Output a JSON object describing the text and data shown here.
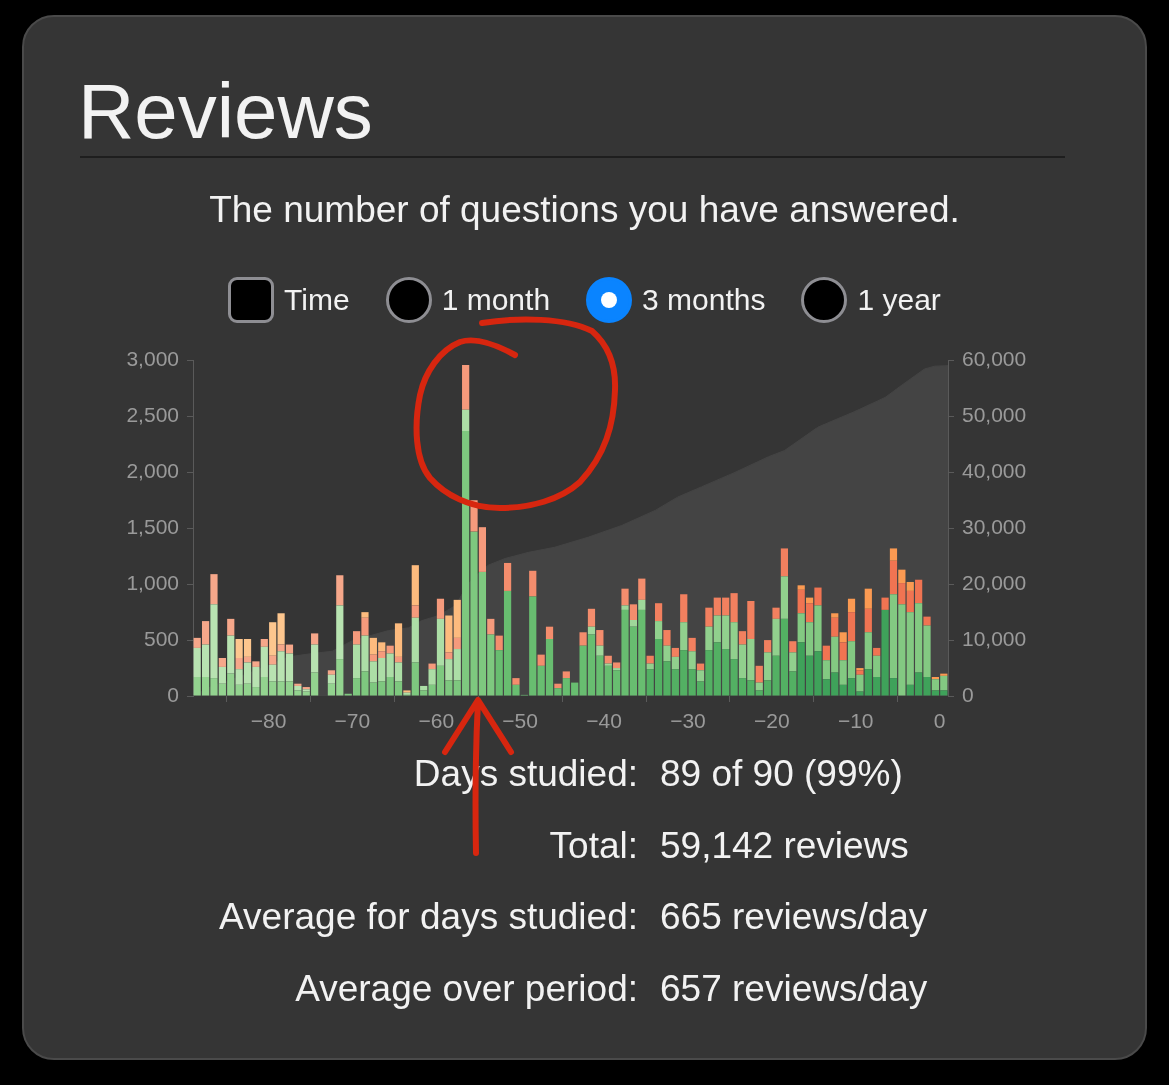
{
  "chart_data": {
    "type": "bar",
    "title": "Reviews",
    "subtitle": "The number of questions you have answered.",
    "annotations": [
      "Time",
      "1 month",
      "3 months",
      "1 year",
      "Days studied:",
      "89 of 90 (99%)",
      "Total:",
      "59,142 reviews",
      "Average for days studied:",
      "665 reviews/day",
      "Average over period:",
      "657 reviews/day"
    ],
    "x": [
      -88.5,
      -87.5,
      -86.5,
      -85.5,
      -84.5,
      -83.5,
      -82.5,
      -81.5,
      -80.5,
      -79.5,
      -78.5,
      -77.5,
      -76.5,
      -75.5,
      -74.5,
      -73.5,
      -72.5,
      -71.5,
      -70.5,
      -69.5,
      -68.5,
      -67.5,
      -66.5,
      -65.5,
      -64.5,
      -63.5,
      -62.5,
      -61.5,
      -60.5,
      -59.5,
      -58.5,
      -57.5,
      -56.5,
      -55.5,
      -54.5,
      -53.5,
      -52.5,
      -51.5,
      -50.5,
      -49.5,
      -48.5,
      -47.5,
      -46.5,
      -45.5,
      -44.5,
      -43.5,
      -42.5,
      -41.5,
      -40.5,
      -39.5,
      -38.5,
      -37.5,
      -36.5,
      -35.5,
      -34.5,
      -33.5,
      -32.5,
      -31.5,
      -30.5,
      -29.5,
      -28.5,
      -27.5,
      -26.5,
      -25.5,
      -24.5,
      -23.5,
      -22.5,
      -21.5,
      -20.5,
      -19.5,
      -18.5,
      -17.5,
      -16.5,
      -15.5,
      -14.5,
      -13.5,
      -12.5,
      -11.5,
      -10.5,
      -9.5,
      -8.5,
      -7.5,
      -6.5,
      -5.5,
      -4.5,
      -3.5,
      -2.5,
      -1.5,
      -0.5,
      0.5
    ],
    "xlim": [
      -89,
      1
    ],
    "xticks": [
      {
        "value": -80,
        "label": "−80"
      },
      {
        "value": -70,
        "label": "−70"
      },
      {
        "value": -60,
        "label": "−60"
      },
      {
        "value": -50,
        "label": "−50"
      },
      {
        "value": -40,
        "label": "−40"
      },
      {
        "value": -30,
        "label": "−30"
      },
      {
        "value": -20,
        "label": "−20"
      },
      {
        "value": -10,
        "label": "−10"
      },
      0
    ],
    "ylim": [
      0,
      3000
    ],
    "yticks": [
      0,
      500,
      {
        "value": 1000,
        "label": "1,000"
      },
      {
        "value": 1500,
        "label": "1,500"
      },
      {
        "value": 2000,
        "label": "2,000"
      },
      {
        "value": 2500,
        "label": "2,500"
      },
      {
        "value": 3000,
        "label": "3,000"
      }
    ],
    "y2lim": [
      0,
      60000
    ],
    "y2ticks": [
      0,
      {
        "value": 10000,
        "label": "10,000"
      },
      {
        "value": 20000,
        "label": "20,000"
      },
      {
        "value": 30000,
        "label": "30,000"
      },
      {
        "value": 40000,
        "label": "40,000"
      },
      {
        "value": 50000,
        "label": "50,000"
      },
      {
        "value": 60000,
        "label": "60,000"
      }
    ],
    "stacked": true,
    "series": [
      {
        "colors": [
          "#93d38f",
          "#93d38f",
          "#93d38f",
          "#93d38f",
          "#93d38f",
          "#93d38f",
          "#93d38f",
          "#93d38f",
          "#93d38f",
          "#93d38f",
          "#93d38f",
          "#93d38f",
          "#93d38f",
          "#93d38f",
          "#93d38f",
          "#93d38f",
          "#93d38f",
          "#93d38f",
          "#7ec87f",
          "#7ec87f",
          "#7ec87f",
          "#7ec87f",
          "#7ec87f",
          "#7ec87f",
          "#7ec87f",
          "#7ec87f",
          "#7ec87f",
          "#7ec87f",
          "#7ec87f",
          "#7ec87f",
          "#7ec87f",
          "#7ec87f",
          "#7ec87f",
          "#7ec87f",
          "#7ec87f",
          "#7ec87f",
          "#68bd70",
          "#68bd70",
          "#68bd70",
          "#68bd70",
          "#68bd70",
          "#68bd70",
          "#68bd70",
          "#68bd70",
          "#68bd70",
          "#68bd70",
          "#68bd70",
          "#68bd70",
          "#68bd70",
          "#68bd70",
          "#68bd70",
          "#68bd70",
          "#68bd70",
          "#68bd70",
          "#53b063",
          "#53b063",
          "#53b063",
          "#53b063",
          "#53b063",
          "#53b063",
          "#53b063",
          "#53b063",
          "#53b063",
          "#53b063",
          "#53b063",
          "#53b063",
          "#53b063",
          "#53b063",
          "#53b063",
          "#53b063",
          "#53b063",
          "#53b063",
          "#3fa25a",
          "#3fa25a",
          "#3fa25a",
          "#3fa25a",
          "#3fa25a",
          "#3fa25a",
          "#3fa25a",
          "#3fa25a",
          "#3fa25a",
          "#3fa25a",
          "#3fa25a",
          "#3fa25a",
          "#3fa25a",
          "#3fa25a",
          "#3fa25a",
          "#3fa25a",
          "#3fa25a",
          "#3fa25a"
        ],
        "values": [
          170,
          170,
          160,
          110,
          200,
          100,
          110,
          80,
          170,
          130,
          130,
          130,
          50,
          40,
          210,
          null,
          110,
          330,
          20,
          160,
          220,
          120,
          130,
          170,
          130,
          10,
          300,
          50,
          100,
          270,
          140,
          140,
          2370,
          1470,
          1110,
          550,
          410,
          940,
          100,
          10,
          890,
          270,
          510,
          70,
          160,
          120,
          450,
          550,
          360,
          270,
          230,
          770,
          620,
          770,
          240,
          510,
          310,
          240,
          410,
          240,
          130,
          410,
          480,
          420,
          330,
          160,
          140,
          50,
          140,
          360,
          690,
          220,
          480,
          360,
          400,
          150,
          210,
          100,
          160,
          40,
          240,
          170,
          770,
          160,
          null,
          100,
          210,
          170,
          50,
          50
        ]
      },
      {
        "colors": [
          "#b8e3b1",
          "#b8e3b1",
          "#b8e3b1",
          "#b8e3b1",
          "#b8e3b1",
          "#b8e3b1",
          "#b8e3b1",
          "#b8e3b1",
          "#b8e3b1",
          "#b8e3b1",
          "#b8e3b1",
          "#b8e3b1",
          "#b8e3b1",
          "#b8e3b1",
          "#b8e3b1",
          "#b8e3b1",
          "#b8e3b1",
          "#b8e3b1",
          "#acdea6",
          "#acdea6",
          "#acdea6",
          "#acdea6",
          "#acdea6",
          "#acdea6",
          "#acdea6",
          "#acdea6",
          "#acdea6",
          "#acdea6",
          "#acdea6",
          "#acdea6",
          "#acdea6",
          "#acdea6",
          "#acdea6",
          "#acdea6",
          "#acdea6",
          "#acdea6",
          "#9fd79a",
          "#9fd79a",
          "#9fd79a",
          "#9fd79a",
          "#9fd79a",
          "#9fd79a",
          "#9fd79a",
          "#9fd79a",
          "#9fd79a",
          "#9fd79a",
          "#9fd79a",
          "#9fd79a",
          "#9fd79a",
          "#9fd79a",
          "#9fd79a",
          "#9fd79a",
          "#9fd79a",
          "#9fd79a",
          "#91d08d",
          "#91d08d",
          "#91d08d",
          "#91d08d",
          "#91d08d",
          "#91d08d",
          "#91d08d",
          "#91d08d",
          "#91d08d",
          "#91d08d",
          "#91d08d",
          "#91d08d",
          "#91d08d",
          "#91d08d",
          "#91d08d",
          "#91d08d",
          "#91d08d",
          "#91d08d",
          "#83c982",
          "#83c982",
          "#83c982",
          "#83c982",
          "#83c982",
          "#83c982",
          "#83c982",
          "#83c982",
          "#83c982",
          "#83c982",
          "#83c982",
          "#83c982",
          "#83c982",
          "#83c982",
          "#83c982",
          "#83c982",
          "#83c982",
          "#83c982"
        ],
        "values": [
          260,
          290,
          660,
          150,
          340,
          140,
          190,
          180,
          270,
          150,
          270,
          250,
          40,
          20,
          250,
          null,
          80,
          480,
          null,
          300,
          320,
          190,
          210,
          210,
          170,
          20,
          400,
          40,
          140,
          420,
          190,
          280,
          190,
          null,
          null,
          null,
          null,
          null,
          null,
          null,
          null,
          null,
          null,
          null,
          null,
          null,
          null,
          70,
          90,
          20,
          20,
          40,
          60,
          90,
          50,
          160,
          140,
          110,
          250,
          160,
          100,
          210,
          240,
          300,
          330,
          300,
          370,
          70,
          250,
          330,
          380,
          170,
          260,
          300,
          410,
          170,
          320,
          220,
          330,
          150,
          330,
          190,
          null,
          750,
          820,
          650,
          620,
          460,
          100,
          130
        ]
      },
      {
        "colors": [
          "#f6a78a",
          "#f6a78a",
          "#f6a78a",
          "#f6a78a",
          "#f6a78a",
          "#f6a78a",
          "#f6a78a",
          "#f6a78a",
          "#f6a78a",
          "#f6a78a",
          "#f6a78a",
          "#f6a78a",
          "#f6a78a",
          "#f6a78a",
          "#f6a78a",
          "#f6a78a",
          "#f6a78a",
          "#f6a78a",
          "#f59a7c",
          "#f59a7c",
          "#f59a7c",
          "#f59a7c",
          "#f59a7c",
          "#f59a7c",
          "#f59a7c",
          "#f59a7c",
          "#f59a7c",
          "#f59a7c",
          "#f59a7c",
          "#f59a7c",
          "#f59a7c",
          "#f59a7c",
          "#f59a7c",
          "#f59a7c",
          "#f59a7c",
          "#f59a7c",
          "#f48d6d",
          "#f48d6d",
          "#f48d6d",
          "#f48d6d",
          "#f48d6d",
          "#f48d6d",
          "#f48d6d",
          "#f48d6d",
          "#f48d6d",
          "#f48d6d",
          "#f48d6d",
          "#f48d6d",
          "#f48d6d",
          "#f48d6d",
          "#f48d6d",
          "#f48d6d",
          "#f48d6d",
          "#f48d6d",
          "#f2805f",
          "#f2805f",
          "#f2805f",
          "#f2805f",
          "#f2805f",
          "#f2805f",
          "#f2805f",
          "#f2805f",
          "#f2805f",
          "#f2805f",
          "#f2805f",
          "#f2805f",
          "#f2805f",
          "#f2805f",
          "#f2805f",
          "#f2805f",
          "#f2805f",
          "#f2805f",
          "#f07452",
          "#f07452",
          "#f07452",
          "#f07452",
          "#f07452",
          "#f07452",
          "#f07452",
          "#f07452",
          "#f07452",
          "#f07452",
          "#f07452",
          "#f07452",
          "#f07452",
          "#f07452",
          "#f07452",
          "#f07452",
          "#f07452",
          "#f07452"
        ],
        "values": [
          90,
          210,
          270,
          80,
          150,
          100,
          50,
          50,
          70,
          80,
          60,
          80,
          20,
          20,
          100,
          null,
          40,
          270,
          null,
          120,
          160,
          60,
          60,
          70,
          50,
          null,
          110,
          null,
          50,
          180,
          60,
          100,
          400,
          280,
          400,
          140,
          130,
          250,
          60,
          null,
          230,
          100,
          110,
          40,
          60,
          null,
          120,
          160,
          140,
          70,
          50,
          150,
          140,
          190,
          70,
          160,
          140,
          80,
          250,
          120,
          60,
          170,
          160,
          160,
          260,
          120,
          340,
          150,
          110,
          100,
          250,
          100,
          210,
          170,
          160,
          130,
          170,
          160,
          260,
          40,
          210,
          70,
          110,
          300,
          190,
          190,
          210,
          80,
          null,
          null
        ]
      },
      {
        "colors": [
          "#fdc68e",
          "#fdc68e",
          "#fdc68e",
          "#fdc68e",
          "#fdc68e",
          "#fdc68e",
          "#fdc68e",
          "#fdc68e",
          "#fdc68e",
          "#fdc68e",
          "#fdc68e",
          "#fdc68e",
          "#fdc68e",
          "#fdc68e",
          "#fdc68e",
          "#fdc68e",
          "#fdc68e",
          "#fdc68e",
          "#fdbb7e",
          "#fdbb7e",
          "#fdbb7e",
          "#fdbb7e",
          "#fdbb7e",
          "#fdbb7e",
          "#fdbb7e",
          "#fdbb7e",
          "#fdbb7e",
          "#fdbb7e",
          "#fdbb7e",
          "#fdbb7e",
          "#fdbb7e",
          "#fdbb7e",
          "#fdbb7e",
          "#fdbb7e",
          "#fdbb7e",
          "#fdbb7e",
          "#fcb06e",
          "#fcb06e",
          "#fcb06e",
          "#fcb06e",
          "#fcb06e",
          "#fcb06e",
          "#fcb06e",
          "#fcb06e",
          "#fcb06e",
          "#fcb06e",
          "#fcb06e",
          "#fcb06e",
          "#fcb06e",
          "#fcb06e",
          "#fcb06e",
          "#fcb06e",
          "#fcb06e",
          "#fcb06e",
          "#fca55f",
          "#fca55f",
          "#fca55f",
          "#fca55f",
          "#fca55f",
          "#fca55f",
          "#fca55f",
          "#fca55f",
          "#fca55f",
          "#fca55f",
          "#fca55f",
          "#fca55f",
          "#fca55f",
          "#fca55f",
          "#fca55f",
          "#fca55f",
          "#fca55f",
          "#fca55f",
          "#fb9a52",
          "#fb9a52",
          "#fb9a52",
          "#fb9a52",
          "#fb9a52",
          "#fb9a52",
          "#fb9a52",
          "#fb9a52",
          "#fb9a52",
          "#fb9a52",
          "#fb9a52",
          "#fb9a52",
          "#fb9a52",
          "#fb9a52",
          "#fb9a52",
          "#fb9a52",
          "#fb9a52",
          "#fb9a52"
        ],
        "values": [
          null,
          null,
          null,
          null,
          null,
          170,
          160,
          null,
          null,
          300,
          280,
          null,
          null,
          null,
          null,
          null,
          null,
          null,
          null,
          null,
          50,
          150,
          80,
          null,
          300,
          20,
          360,
          null,
          null,
          null,
          330,
          340,
          null,
          null,
          null,
          null,
          null,
          null,
          null,
          null,
          null,
          null,
          null,
          null,
          null,
          null,
          null,
          null,
          null,
          null,
          null,
          null,
          null,
          null,
          null,
          null,
          null,
          null,
          null,
          null,
          null,
          null,
          null,
          null,
          null,
          null,
          null,
          null,
          null,
          null,
          null,
          null,
          40,
          50,
          null,
          null,
          40,
          90,
          120,
          20,
          180,
          null,
          null,
          110,
          120,
          80,
          null,
          null,
          20,
          20
        ]
      },
      {
        "type": "area",
        "axis": "y2",
        "color": "#444444",
        "x": [
          -89,
          -86.5,
          -83.5,
          -80.4,
          -77.6,
          -74.8,
          -72.4,
          -70,
          -65.7,
          -63.3,
          -61.7,
          -59.7,
          -57.7,
          -56.2,
          -55,
          -53.8,
          -51.8,
          -49,
          -45.9,
          -41.9,
          -37.9,
          -33.9,
          -31.2,
          -28.4,
          -24.4,
          -20.4,
          -18.5,
          -14.5,
          -10.1,
          -6.5,
          -4.6,
          -1.8,
          -0.6,
          1
        ],
        "values": [
          0,
          1900,
          3400,
          5200,
          7000,
          7600,
          8000,
          9900,
          11700,
          12200,
          13500,
          14400,
          16200,
          20100,
          21900,
          23400,
          24600,
          25700,
          26600,
          28400,
          30500,
          33200,
          35600,
          37400,
          40000,
          42800,
          43900,
          48100,
          50900,
          53400,
          55500,
          58500,
          59000,
          59100
        ]
      }
    ]
  }
}
